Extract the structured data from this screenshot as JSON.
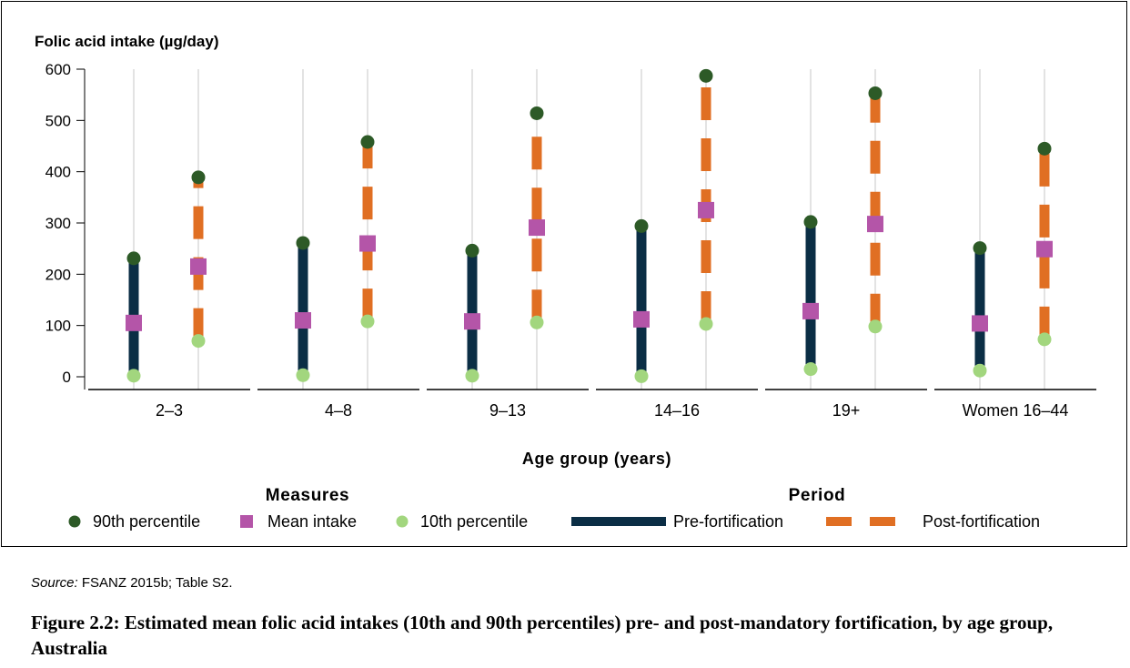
{
  "chart_data": {
    "type": "range-dot",
    "ylabel": "Folic acid intake (µg/day)",
    "xlabel": "Age group (years)",
    "ylim": [
      0,
      600
    ],
    "yticks": [
      0,
      100,
      200,
      300,
      400,
      500,
      600
    ],
    "categories": [
      "2–3",
      "4–8",
      "9–13",
      "14–16",
      "19+",
      "Women 16–44"
    ],
    "periods": [
      {
        "name": "Pre-fortification",
        "color": "#0b2e45",
        "style": "solid",
        "p90": [
          231,
          261,
          246,
          294,
          302,
          251
        ],
        "mean": [
          105,
          110,
          108,
          112,
          128,
          104
        ],
        "p10": [
          2,
          3,
          2,
          1,
          15,
          12
        ]
      },
      {
        "name": "Post-fortification",
        "color": "#e06f23",
        "style": "dashed",
        "p90": [
          389,
          458,
          514,
          587,
          553,
          445
        ],
        "mean": [
          215,
          260,
          291,
          325,
          298,
          249
        ],
        "p10": [
          70,
          108,
          106,
          103,
          98,
          73
        ]
      }
    ],
    "markers": {
      "p90": {
        "label": "90th percentile",
        "color": "#2d5a27"
      },
      "mean": {
        "label": "Mean intake",
        "color": "#b455a8"
      },
      "p10": {
        "label": "10th percentile",
        "color": "#a2d67e"
      }
    },
    "legend": {
      "measures_title": "Measures",
      "period_title": "Period",
      "placement": "bottom"
    },
    "grid": "vertical"
  },
  "source": {
    "label": "Source:",
    "text": "FSANZ 2015b; Table S2."
  },
  "caption": "Figure 2.2: Estimated mean folic acid intakes (10th and 90th percentiles) pre- and post-mandatory fortification, by age group, Australia"
}
